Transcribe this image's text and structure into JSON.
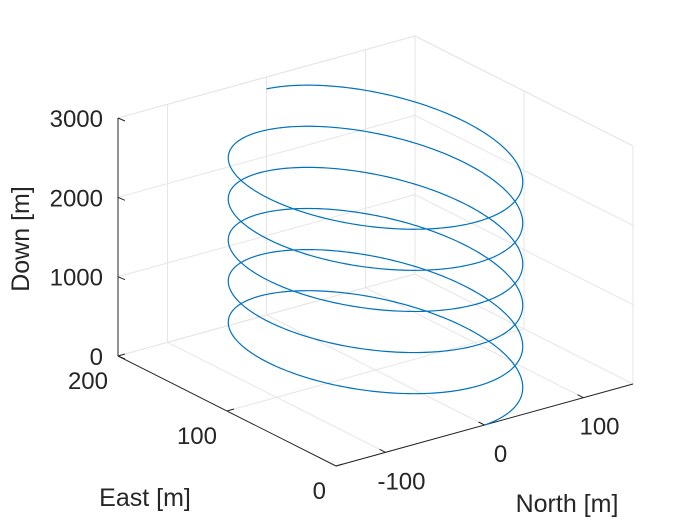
{
  "chart_data": {
    "type": "line",
    "subtype": "3d-line",
    "title": "",
    "xlabel": "North [m]",
    "ylabel": "East [m]",
    "zlabel": "Down [m]",
    "xlim": [
      -150,
      150
    ],
    "ylim": [
      0,
      200
    ],
    "zlim": [
      0,
      3000
    ],
    "x_ticks": [
      {
        "value": -100,
        "label": "-100"
      },
      {
        "value": 0,
        "label": "0"
      },
      {
        "value": 100,
        "label": "100"
      }
    ],
    "y_ticks": [
      {
        "value": 0,
        "label": "0"
      },
      {
        "value": 100,
        "label": "100"
      },
      {
        "value": 200,
        "label": "200"
      }
    ],
    "z_ticks": [
      {
        "value": 0,
        "label": "0"
      },
      {
        "value": 1000,
        "label": "1000"
      },
      {
        "value": 2000,
        "label": "2000"
      },
      {
        "value": 3000,
        "label": "3000"
      }
    ],
    "grid": true,
    "box": false,
    "legend": "none",
    "series": [
      {
        "color": "#0072BD",
        "shape": "helix",
        "center": {
          "north": 0,
          "east": 100
        },
        "radius_m": 100,
        "down_start": 0,
        "down_end": 2850,
        "turns": 5.5,
        "start_point": {
          "north": 0,
          "east": 0,
          "down": 0
        }
      }
    ]
  }
}
